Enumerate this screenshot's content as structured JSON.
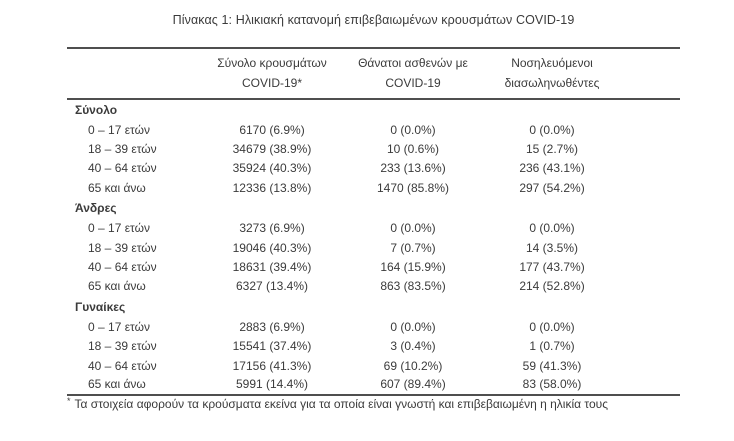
{
  "title": "Πίνακας 1: Ηλικιακή κατανομή επιβεβαιωμένων κρουσμάτων COVID-19",
  "colors": {
    "text": "#3b3b3b",
    "rule": "#4f4f4f",
    "background": "#ffffff"
  },
  "table": {
    "columns": [
      {
        "line1": "Σύνολο κρουσμάτων",
        "line2": "COVID-19*"
      },
      {
        "line1": "Θάνατοι ασθενών με",
        "line2": "COVID-19"
      },
      {
        "line1": "Νοσηλευόμενοι",
        "line2": "διασωληνωθέντες"
      }
    ],
    "sections": [
      {
        "label": "Σύνολο",
        "rows": [
          {
            "label": "0 – 17 ετών",
            "cases": "6170 (6.9%)",
            "deaths": "0 (0.0%)",
            "intubated": "0 (0.0%)"
          },
          {
            "label": "18 – 39 ετών",
            "cases": "34679 (38.9%)",
            "deaths": "10 (0.6%)",
            "intubated": "15 (2.7%)"
          },
          {
            "label": "40 – 64 ετών",
            "cases": "35924 (40.3%)",
            "deaths": "233 (13.6%)",
            "intubated": "236 (43.1%)"
          },
          {
            "label": "65 και άνω",
            "cases": "12336 (13.8%)",
            "deaths": "1470 (85.8%)",
            "intubated": "297 (54.2%)"
          }
        ]
      },
      {
        "label": "Άνδρες",
        "rows": [
          {
            "label": "0 – 17 ετών",
            "cases": "3273 (6.9%)",
            "deaths": "0 (0.0%)",
            "intubated": "0 (0.0%)"
          },
          {
            "label": "18 – 39 ετών",
            "cases": "19046 (40.3%)",
            "deaths": "7 (0.7%)",
            "intubated": "14 (3.5%)"
          },
          {
            "label": "40 – 64 ετών",
            "cases": "18631 (39.4%)",
            "deaths": "164 (15.9%)",
            "intubated": "177 (43.7%)"
          },
          {
            "label": "65 και άνω",
            "cases": "6327 (13.4%)",
            "deaths": "863 (83.5%)",
            "intubated": "214 (52.8%)"
          }
        ]
      },
      {
        "label": "Γυναίκες",
        "rows": [
          {
            "label": "0 – 17 ετών",
            "cases": "2883 (6.9%)",
            "deaths": "0 (0.0%)",
            "intubated": "0 (0.0%)"
          },
          {
            "label": "18 – 39 ετών",
            "cases": "15541 (37.4%)",
            "deaths": "3 (0.4%)",
            "intubated": "1 (0.7%)"
          },
          {
            "label": "40 – 64 ετών",
            "cases": "17156 (41.3%)",
            "deaths": "69 (10.2%)",
            "intubated": "59 (41.3%)"
          },
          {
            "label": "65 και άνω",
            "cases": "5991 (14.4%)",
            "deaths": "607 (89.4%)",
            "intubated": "83 (58.0%)"
          }
        ]
      }
    ]
  },
  "footnote": {
    "marker": "*",
    "text": "Τα στοιχεία αφορούν τα κρούσματα εκείνα για τα οποία είναι γνωστή και επιβεβαιωμένη η ηλικία τους"
  }
}
